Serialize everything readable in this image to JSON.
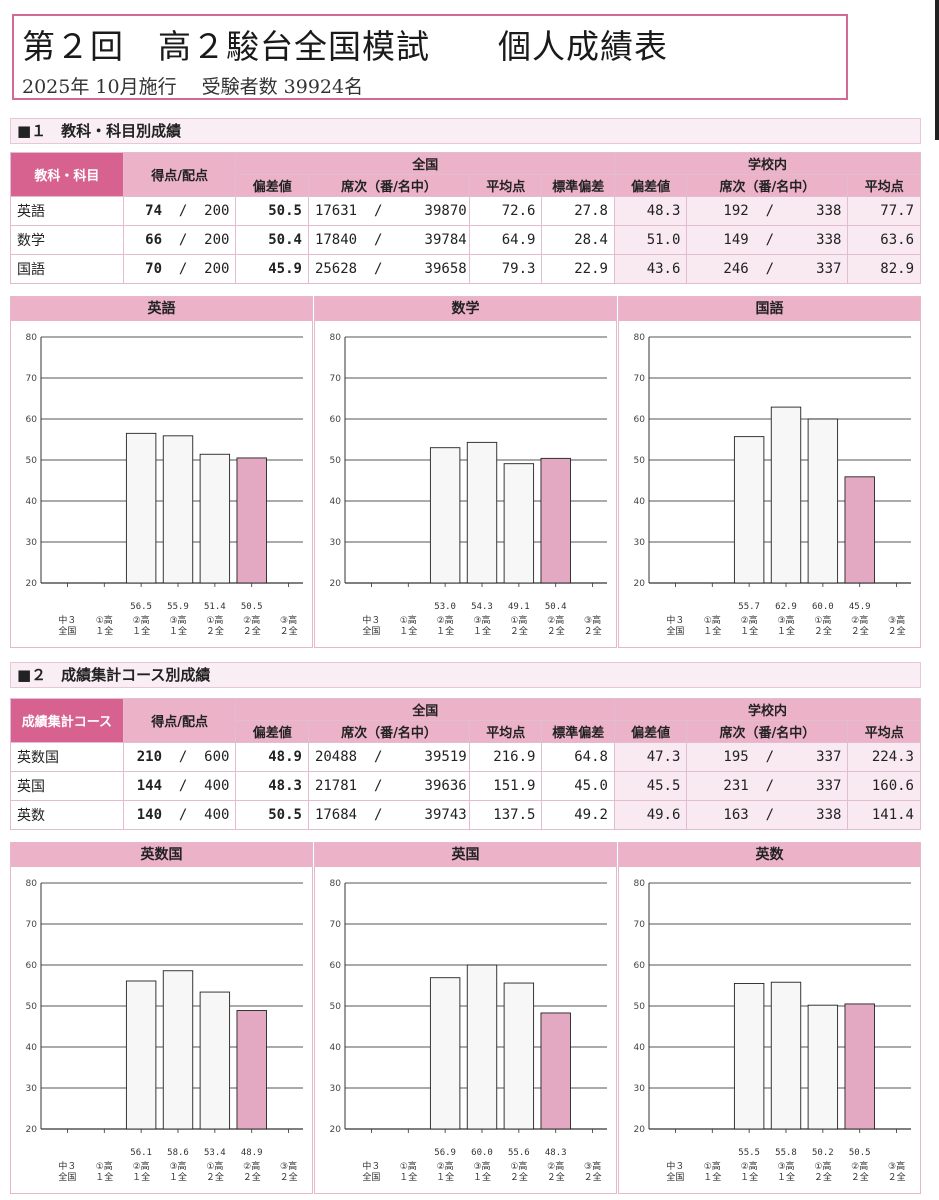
{
  "header": {
    "title": "第２回　高２駿台全国模試　　個人成績表",
    "subtitle": "2025年  10月施行　 受験者数  39924名"
  },
  "section1": {
    "heading": "■１　教科・科目別成績",
    "headers": {
      "subject": "教科・科目",
      "score": "得点/配点",
      "national": "全国",
      "school": "学校内",
      "dev": "偏差値",
      "rank": "席次（番/名中）",
      "avg": "平均点",
      "sd": "標準偏差"
    },
    "rows": [
      {
        "name": "英語",
        "score": "74",
        "max": "200",
        "dev": "50.5",
        "rank": "17631",
        "total": "39870",
        "avg": "72.6",
        "sd": "27.8",
        "s_dev": "48.3",
        "s_rank": "192",
        "s_total": "338",
        "s_avg": "77.7"
      },
      {
        "name": "数学",
        "score": "66",
        "max": "200",
        "dev": "50.4",
        "rank": "17840",
        "total": "39784",
        "avg": "64.9",
        "sd": "28.4",
        "s_dev": "51.0",
        "s_rank": "149",
        "s_total": "338",
        "s_avg": "63.6"
      },
      {
        "name": "国語",
        "score": "70",
        "max": "200",
        "dev": "45.9",
        "rank": "25628",
        "total": "39658",
        "avg": "79.3",
        "sd": "22.9",
        "s_dev": "43.6",
        "s_rank": "246",
        "s_total": "337",
        "s_avg": "82.9"
      }
    ]
  },
  "section2": {
    "heading": "■２　成績集計コース別成績",
    "headers": {
      "subject": "成績集計コース",
      "score": "得点/配点",
      "national": "全国",
      "school": "学校内",
      "dev": "偏差値",
      "rank": "席次（番/名中）",
      "avg": "平均点",
      "sd": "標準偏差"
    },
    "rows": [
      {
        "name": "英数国",
        "score": "210",
        "max": "600",
        "dev": "48.9",
        "rank": "20488",
        "total": "39519",
        "avg": "216.9",
        "sd": "64.8",
        "s_dev": "47.3",
        "s_rank": "195",
        "s_total": "337",
        "s_avg": "224.3"
      },
      {
        "name": "英国",
        "score": "144",
        "max": "400",
        "dev": "48.3",
        "rank": "21781",
        "total": "39636",
        "avg": "151.9",
        "sd": "45.0",
        "s_dev": "45.5",
        "s_rank": "231",
        "s_total": "337",
        "s_avg": "160.6"
      },
      {
        "name": "英数",
        "score": "140",
        "max": "400",
        "dev": "50.5",
        "rank": "17684",
        "total": "39743",
        "avg": "137.5",
        "sd": "49.2",
        "s_dev": "49.6",
        "s_rank": "163",
        "s_total": "338",
        "s_avg": "141.4"
      }
    ]
  },
  "colors": {
    "bar_normal": "#f7f7f7",
    "bar_highlight": "#e4a9c2",
    "accent": "#d7628f",
    "header": "#ecb2c8"
  },
  "chart_data": [
    {
      "type": "bar",
      "title": "英語",
      "categories": [
        [
          "中３",
          "全国"
        ],
        [
          "①高",
          "１全"
        ],
        [
          "②高",
          "１全"
        ],
        [
          "③高",
          "１全"
        ],
        [
          "①高",
          "２全"
        ],
        [
          "②高",
          "２全"
        ],
        [
          "③高",
          "２全"
        ]
      ],
      "values": [
        null,
        null,
        56.5,
        55.9,
        51.4,
        50.5,
        null
      ],
      "labels": [
        "",
        "",
        "56.5",
        "55.9",
        "51.4",
        "50.5",
        ""
      ],
      "highlight": 5,
      "ylim": [
        20,
        80
      ],
      "yticks": [
        20,
        30,
        40,
        50,
        60,
        70,
        80
      ]
    },
    {
      "type": "bar",
      "title": "数学",
      "categories": [
        [
          "中３",
          "全国"
        ],
        [
          "①高",
          "１全"
        ],
        [
          "②高",
          "１全"
        ],
        [
          "③高",
          "１全"
        ],
        [
          "①高",
          "２全"
        ],
        [
          "②高",
          "２全"
        ],
        [
          "③高",
          "２全"
        ]
      ],
      "values": [
        null,
        null,
        53.0,
        54.3,
        49.1,
        50.4,
        null
      ],
      "labels": [
        "",
        "",
        "53.0",
        "54.3",
        "49.1",
        "50.4",
        ""
      ],
      "highlight": 5,
      "ylim": [
        20,
        80
      ],
      "yticks": [
        20,
        30,
        40,
        50,
        60,
        70,
        80
      ]
    },
    {
      "type": "bar",
      "title": "国語",
      "categories": [
        [
          "中３",
          "全国"
        ],
        [
          "①高",
          "１全"
        ],
        [
          "②高",
          "１全"
        ],
        [
          "③高",
          "１全"
        ],
        [
          "①高",
          "２全"
        ],
        [
          "②高",
          "２全"
        ],
        [
          "③高",
          "２全"
        ]
      ],
      "values": [
        null,
        null,
        55.7,
        62.9,
        60.0,
        45.9,
        null
      ],
      "labels": [
        "",
        "",
        "55.7",
        "62.9",
        "60.0",
        "45.9",
        ""
      ],
      "highlight": 5,
      "ylim": [
        20,
        80
      ],
      "yticks": [
        20,
        30,
        40,
        50,
        60,
        70,
        80
      ]
    },
    {
      "type": "bar",
      "title": "英数国",
      "categories": [
        [
          "中３",
          "全国"
        ],
        [
          "①高",
          "１全"
        ],
        [
          "②高",
          "１全"
        ],
        [
          "③高",
          "１全"
        ],
        [
          "①高",
          "２全"
        ],
        [
          "②高",
          "２全"
        ],
        [
          "③高",
          "２全"
        ]
      ],
      "values": [
        null,
        null,
        56.1,
        58.6,
        53.4,
        48.9,
        null
      ],
      "labels": [
        "",
        "",
        "56.1",
        "58.6",
        "53.4",
        "48.9",
        ""
      ],
      "highlight": 5,
      "ylim": [
        20,
        80
      ],
      "yticks": [
        20,
        30,
        40,
        50,
        60,
        70,
        80
      ]
    },
    {
      "type": "bar",
      "title": "英国",
      "categories": [
        [
          "中３",
          "全国"
        ],
        [
          "①高",
          "１全"
        ],
        [
          "②高",
          "１全"
        ],
        [
          "③高",
          "１全"
        ],
        [
          "①高",
          "２全"
        ],
        [
          "②高",
          "２全"
        ],
        [
          "③高",
          "２全"
        ]
      ],
      "values": [
        null,
        null,
        56.9,
        60.0,
        55.6,
        48.3,
        null
      ],
      "labels": [
        "",
        "",
        "56.9",
        "60.0",
        "55.6",
        "48.3",
        ""
      ],
      "highlight": 5,
      "ylim": [
        20,
        80
      ],
      "yticks": [
        20,
        30,
        40,
        50,
        60,
        70,
        80
      ]
    },
    {
      "type": "bar",
      "title": "英数",
      "categories": [
        [
          "中３",
          "全国"
        ],
        [
          "①高",
          "１全"
        ],
        [
          "②高",
          "１全"
        ],
        [
          "③高",
          "１全"
        ],
        [
          "①高",
          "２全"
        ],
        [
          "②高",
          "２全"
        ],
        [
          "③高",
          "２全"
        ]
      ],
      "values": [
        null,
        null,
        55.5,
        55.8,
        50.2,
        50.5,
        null
      ],
      "labels": [
        "",
        "",
        "55.5",
        "55.8",
        "50.2",
        "50.5",
        ""
      ],
      "highlight": 5,
      "ylim": [
        20,
        80
      ],
      "yticks": [
        20,
        30,
        40,
        50,
        60,
        70,
        80
      ]
    }
  ]
}
